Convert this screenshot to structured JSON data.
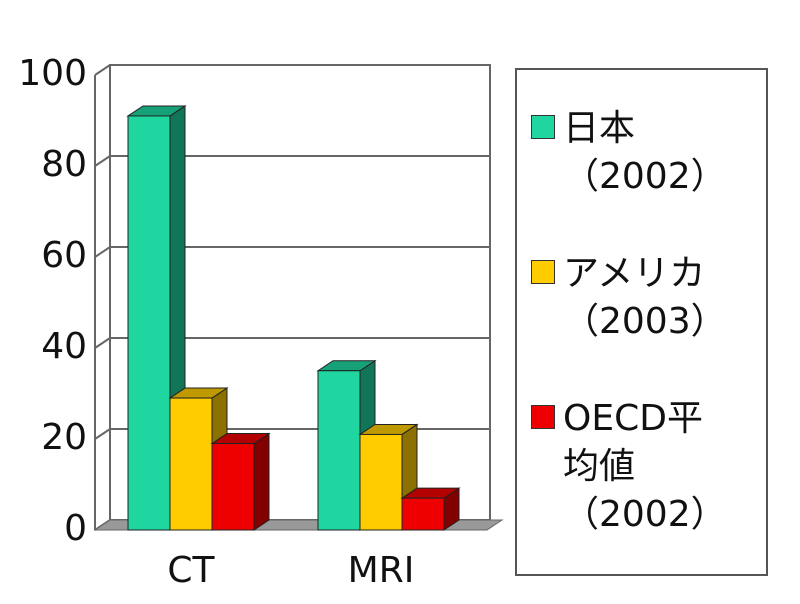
{
  "chart_data": {
    "type": "bar3d",
    "categories": [
      "CT",
      "MRI"
    ],
    "series": [
      {
        "name": "日本\n（2002）",
        "color": "#1fd6a0",
        "values": [
          91,
          35
        ]
      },
      {
        "name": "アメリカ\n（2003）",
        "color": "#ffcc00",
        "values": [
          29,
          21
        ]
      },
      {
        "name": "OECD平\n均値\n（2002）",
        "color": "#ee0000",
        "values": [
          19,
          7
        ]
      }
    ],
    "ylim": [
      0,
      100
    ],
    "yticks": [
      0,
      20,
      40,
      60,
      80,
      100
    ],
    "grid": true
  }
}
